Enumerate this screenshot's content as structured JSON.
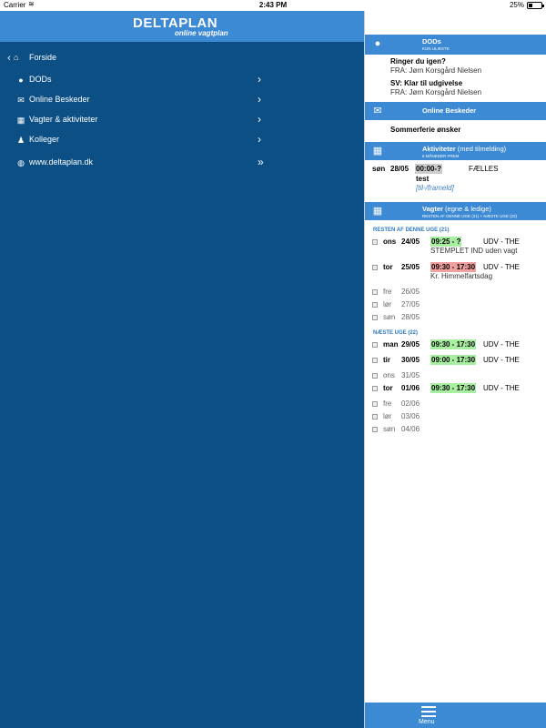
{
  "status_bar": {
    "carrier": "Carrier",
    "wifi_icon": "wifi-icon",
    "time": "2:43 PM",
    "battery": "25%"
  },
  "brand": {
    "title": "DELTAPLAN",
    "subtitle": "online vagtplan"
  },
  "nav": {
    "back_label": "Forside",
    "items": [
      {
        "label": "DODs",
        "icon": "chat-icon",
        "icon_glyph": "💬"
      },
      {
        "label": "Online Beskeder",
        "icon": "envelope-icon",
        "icon_glyph": "✉"
      },
      {
        "label": "Vagter & aktiviteter",
        "icon": "calendar-icon",
        "icon_glyph": "▦"
      },
      {
        "label": "Kolleger",
        "icon": "users-icon",
        "icon_glyph": "👥"
      }
    ],
    "external": {
      "label": "www.deltaplan.dk",
      "icon": "globe-icon"
    }
  },
  "dods": {
    "title": "DODs",
    "subtitle": "KUN ULÆSTE",
    "messages": [
      {
        "subject": "Ringer du igen?",
        "from": "FRA: Jørn Korsgård Nielsen"
      },
      {
        "subject": "SV: Klar til udgivelse",
        "from": "FRA: Jørn Korsgård Nielsen"
      }
    ]
  },
  "online_beskeder": {
    "title": "Online Beskeder",
    "messages": [
      "Sommerferie ønsker"
    ]
  },
  "aktiviteter": {
    "title": "Aktiviteter",
    "title_note": "(med tilmelding)",
    "subtitle": "6 MÅNEDER FREM",
    "items": [
      {
        "day": "søn",
        "date": "28/05",
        "time": "00:00-?",
        "place": "FÆLLES",
        "name": "test",
        "action": "[til-/frameld]"
      }
    ]
  },
  "vagter": {
    "title": "Vagter",
    "title_note": "(egne & ledige)",
    "subtitle": "RESTEN AF DENNE UGE (21) + NÆSTE UGE (22)",
    "groups": [
      {
        "label": "RESTEN AF DENNE UGE (21)",
        "rows": [
          {
            "day": "ons",
            "date": "24/05",
            "time": "09:25 - ?",
            "time_color": "#a8eea0",
            "place": "UDV - THE",
            "note": "STEMPLET IND uden vagt"
          },
          {
            "day": "tor",
            "date": "25/05",
            "time": "09:30 - 17:30",
            "time_color": "#f2a0a0",
            "place": "UDV - THE",
            "note": "Kr. Himmelfartsdag"
          },
          {
            "day": "fre",
            "date": "26/05"
          },
          {
            "day": "lør",
            "date": "27/05"
          },
          {
            "day": "søn",
            "date": "28/05"
          }
        ]
      },
      {
        "label": "NÆSTE UGE (22)",
        "rows": [
          {
            "day": "man",
            "date": "29/05",
            "time": "09:30 - 17:30",
            "time_color": "#a8eea0",
            "place": "UDV - THE"
          },
          {
            "day": "tir",
            "date": "30/05",
            "time": "09:00 - 17:30",
            "time_color": "#a8eea0",
            "place": "UDV - THE"
          },
          {
            "day": "ons",
            "date": "31/05"
          },
          {
            "day": "tor",
            "date": "01/06",
            "time": "09:30 - 17:30",
            "time_color": "#a8eea0",
            "place": "UDV - THE"
          },
          {
            "day": "fre",
            "date": "02/06"
          },
          {
            "day": "lør",
            "date": "03/06"
          },
          {
            "day": "søn",
            "date": "04/06"
          }
        ]
      }
    ]
  },
  "footer": {
    "menu_label": "Menu",
    "menu_icon": "hamburger-icon"
  },
  "colors": {
    "sidebar_bg": "#0b4f85",
    "accent": "#3d8ad4",
    "shift_green": "#a8eea0",
    "shift_red": "#f2a0a0",
    "activity_gray": "#cccccc"
  }
}
